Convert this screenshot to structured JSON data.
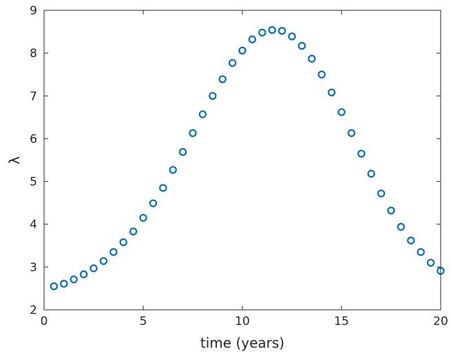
{
  "chart_data": {
    "type": "scatter",
    "title": "",
    "xlabel": "time (years)",
    "ylabel": "λ",
    "xlim": [
      0,
      20
    ],
    "ylim": [
      2,
      9
    ],
    "x_ticks": [
      0,
      5,
      10,
      15,
      20
    ],
    "y_ticks": [
      2,
      3,
      4,
      5,
      6,
      7,
      8,
      9
    ],
    "grid": false,
    "legend": "none",
    "marker": "open-circle",
    "colors": {
      "marker": "#0072BD",
      "axes": "#262626",
      "background": "#ffffff"
    },
    "series": [
      {
        "x": [
          0.5,
          1.0,
          1.5,
          2.0,
          2.5,
          3.0,
          3.5,
          4.0,
          4.5,
          5.0,
          5.5,
          6.0,
          6.5,
          7.0,
          7.5,
          8.0,
          8.5,
          9.0,
          9.5,
          10.0,
          10.5,
          11.0,
          11.5,
          12.0,
          12.5,
          13.0,
          13.5,
          14.0,
          14.5,
          15.0,
          15.5,
          16.0,
          16.5,
          17.0,
          17.5,
          18.0,
          18.5,
          19.0,
          19.5,
          20.0
        ],
        "y": [
          2.55,
          2.61,
          2.71,
          2.83,
          2.97,
          3.14,
          3.35,
          3.58,
          3.83,
          4.15,
          4.49,
          4.85,
          5.27,
          5.69,
          6.13,
          6.57,
          7.0,
          7.39,
          7.77,
          8.06,
          8.32,
          8.48,
          8.54,
          8.52,
          8.39,
          8.17,
          7.87,
          7.5,
          7.08,
          6.62,
          6.13,
          5.65,
          5.18,
          4.72,
          4.32,
          3.94,
          3.62,
          3.35,
          3.1,
          2.91
        ]
      }
    ]
  }
}
